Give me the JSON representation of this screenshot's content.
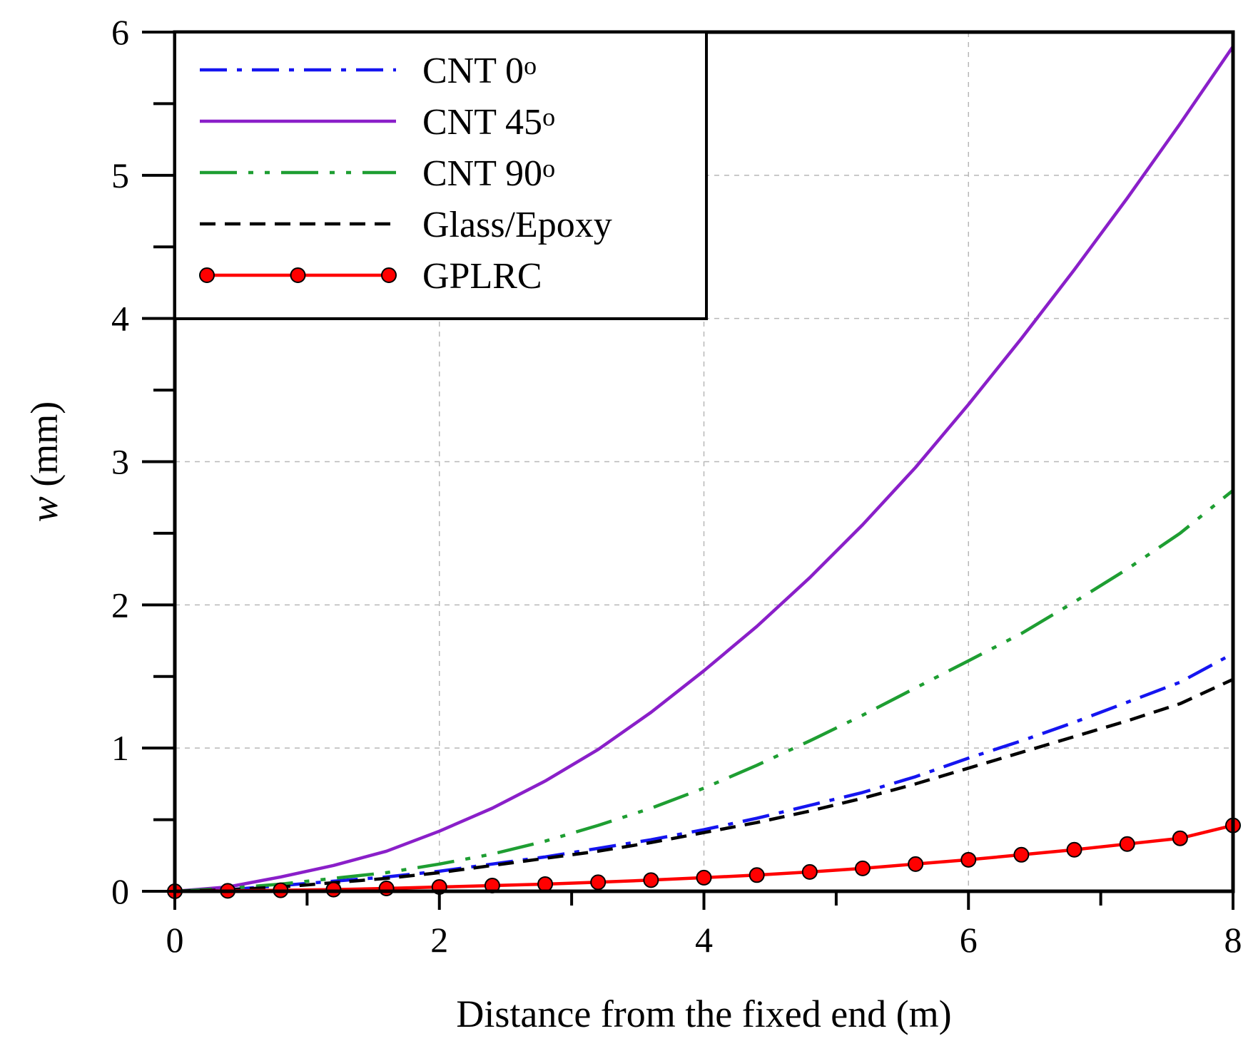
{
  "chart_data": {
    "type": "line",
    "title": "",
    "xlabel": "Distance from the fixed end (m)",
    "ylabel_italic": "w",
    "ylabel_unit": " (mm)",
    "xlim": [
      0,
      8
    ],
    "ylim": [
      0,
      6
    ],
    "xticks": [
      0,
      2,
      4,
      6,
      8
    ],
    "yticks": [
      0,
      1,
      2,
      3,
      4,
      5,
      6
    ],
    "grid": true,
    "legend_position": "top-left",
    "x": [
      0,
      0.4,
      0.8,
      1.2,
      1.6,
      2.0,
      2.4,
      2.8,
      3.2,
      3.6,
      4.0,
      4.4,
      4.8,
      5.2,
      5.6,
      6.0,
      6.4,
      6.8,
      7.2,
      7.6,
      8.0
    ],
    "series": [
      {
        "name": "CNT 0",
        "degree": "o",
        "color": "#1515f0",
        "dash": "dashdot",
        "markers": false,
        "values": [
          0,
          0.01,
          0.04,
          0.07,
          0.1,
          0.14,
          0.19,
          0.24,
          0.3,
          0.36,
          0.43,
          0.51,
          0.6,
          0.69,
          0.8,
          0.93,
          1.05,
          1.18,
          1.32,
          1.46,
          1.66
        ]
      },
      {
        "name": "CNT 45",
        "degree": "o",
        "color": "#8a1fc9",
        "dash": "solid",
        "markers": false,
        "values": [
          0,
          0.03,
          0.1,
          0.18,
          0.28,
          0.42,
          0.58,
          0.77,
          0.99,
          1.25,
          1.54,
          1.85,
          2.19,
          2.56,
          2.96,
          3.4,
          3.86,
          4.34,
          4.84,
          5.36,
          5.9
        ]
      },
      {
        "name": "CNT 90",
        "degree": "o",
        "color": "#1e9e32",
        "dash": "dashdotdot",
        "markers": false,
        "values": [
          0,
          0.02,
          0.05,
          0.09,
          0.13,
          0.19,
          0.26,
          0.35,
          0.46,
          0.58,
          0.72,
          0.88,
          1.05,
          1.23,
          1.42,
          1.61,
          1.8,
          2.02,
          2.25,
          2.5,
          2.8
        ]
      },
      {
        "name": "Glass/Epoxy",
        "degree": "",
        "color": "#000000",
        "dash": "dashed",
        "markers": false,
        "values": [
          0,
          0.01,
          0.03,
          0.06,
          0.09,
          0.13,
          0.18,
          0.23,
          0.28,
          0.34,
          0.41,
          0.48,
          0.56,
          0.65,
          0.75,
          0.86,
          0.97,
          1.08,
          1.19,
          1.31,
          1.48
        ]
      },
      {
        "name": "GPLRC",
        "degree": "",
        "color": "#ff0000",
        "dash": "solid",
        "markers": true,
        "values": [
          0,
          0.003,
          0.007,
          0.012,
          0.02,
          0.03,
          0.04,
          0.05,
          0.063,
          0.078,
          0.095,
          0.113,
          0.135,
          0.16,
          0.19,
          0.22,
          0.255,
          0.29,
          0.33,
          0.37,
          0.46
        ]
      }
    ]
  }
}
